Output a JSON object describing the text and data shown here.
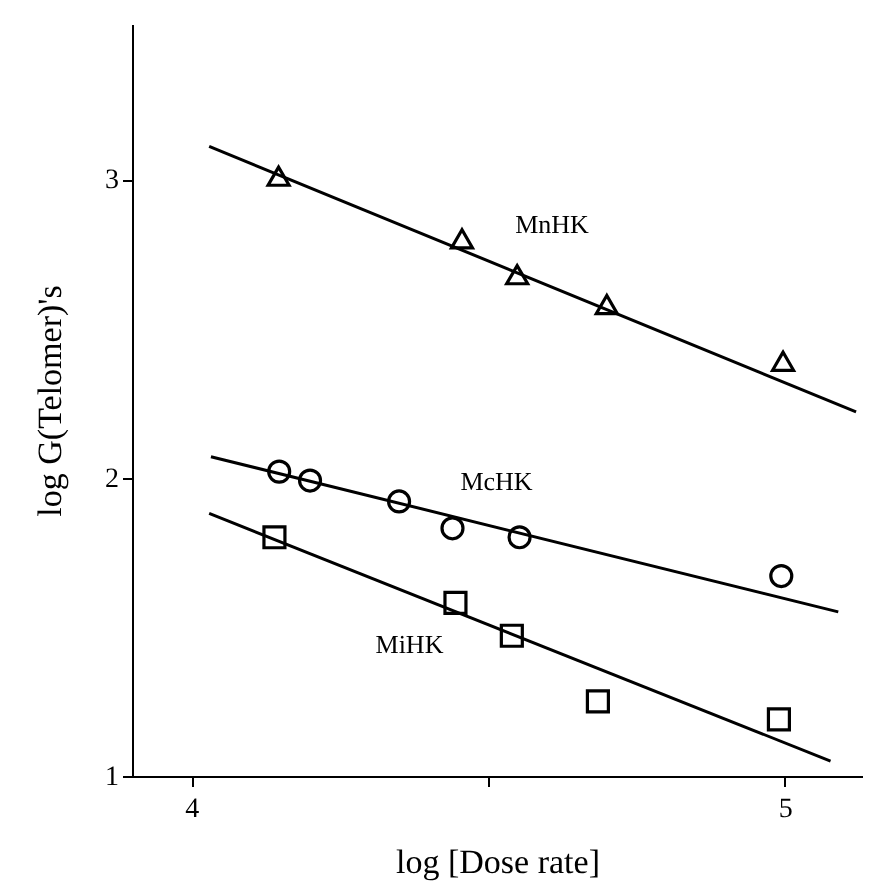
{
  "chart_data": {
    "type": "scatter",
    "xlabel": "log [Dose rate]",
    "ylabel": "log G(Telomer)'s",
    "xlim": [
      3.9,
      5.13
    ],
    "ylim": [
      1,
      3.52
    ],
    "xticks": [
      4,
      {
        "value": 4.5,
        "label": null
      },
      5
    ],
    "yticks": [
      1,
      2,
      3
    ],
    "grid": false,
    "series": [
      {
        "name": "MnHK",
        "marker": "triangle",
        "color": "#000000",
        "x": [
          4.147,
          4.456,
          4.549,
          4.7,
          4.997
        ],
        "values": [
          3.01,
          2.8,
          2.68,
          2.58,
          2.39
        ]
      },
      {
        "name": "McHK",
        "marker": "circle",
        "color": "#000000",
        "x": [
          4.148,
          4.2,
          4.35,
          4.44,
          4.553,
          4.994
        ],
        "values": [
          2.02,
          1.99,
          1.92,
          1.83,
          1.8,
          1.67
        ]
      },
      {
        "name": "MiHK",
        "marker": "square",
        "color": "#000000",
        "x": [
          4.14,
          4.445,
          4.54,
          4.685,
          4.99
        ],
        "values": [
          1.8,
          1.58,
          1.47,
          1.25,
          1.19
        ]
      },
      {
        "type": "line",
        "marker": "none",
        "line_style": "solid",
        "color": "#000000",
        "x": [
          4.03,
          5.12
        ],
        "values": [
          3.11,
          2.22
        ]
      },
      {
        "type": "line",
        "marker": "none",
        "line_style": "solid",
        "color": "#000000",
        "x": [
          4.033,
          5.09
        ],
        "values": [
          2.07,
          1.55
        ]
      },
      {
        "type": "line",
        "marker": "none",
        "line_style": "solid",
        "color": "#000000",
        "x": [
          4.03,
          5.077
        ],
        "values": [
          1.88,
          1.05
        ]
      }
    ]
  }
}
